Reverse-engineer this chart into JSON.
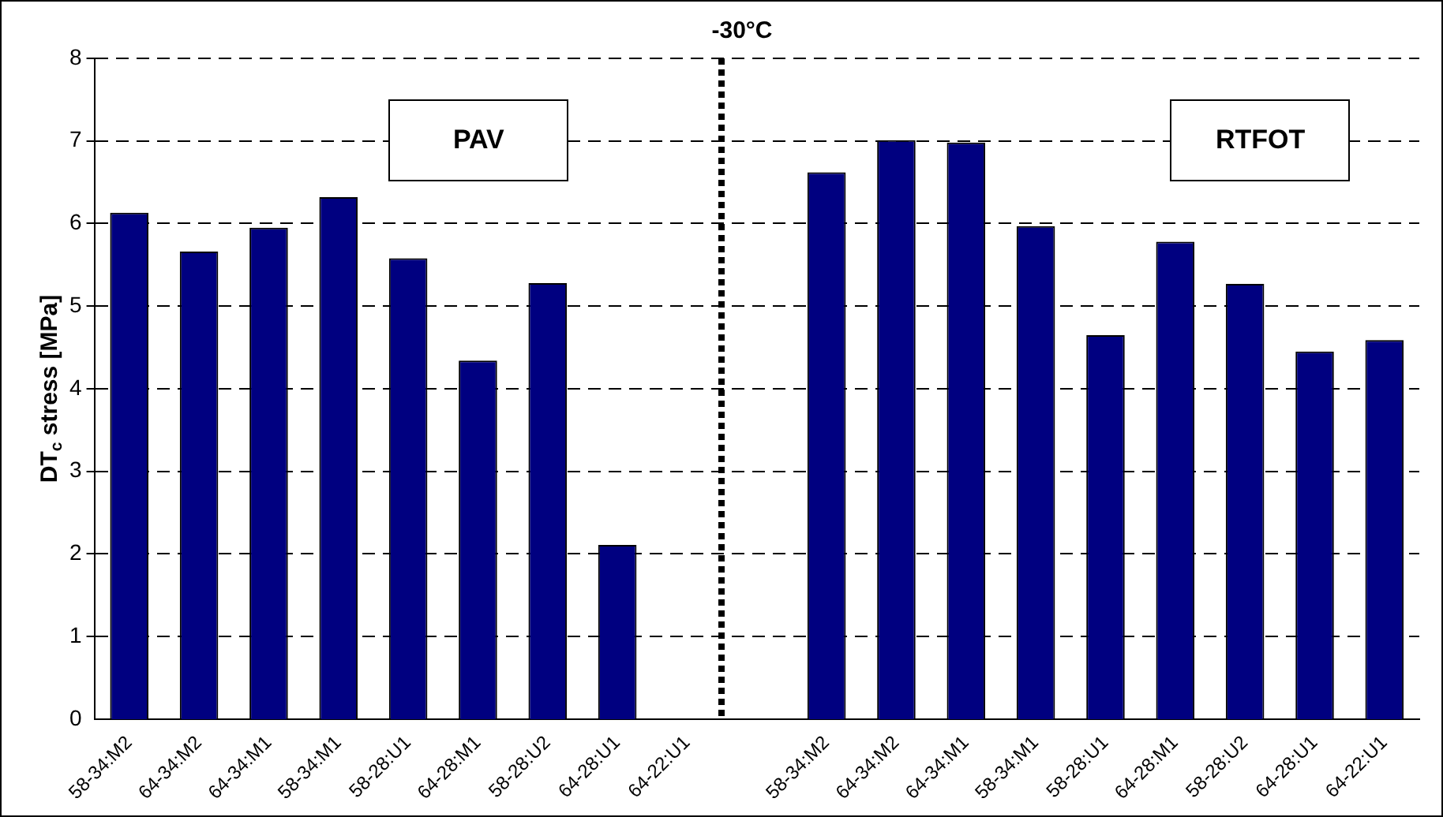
{
  "chart_data": {
    "type": "bar",
    "title": "-30°C",
    "ylabel": "DT$_{c}$ stress [MPa]",
    "categories": [
      "58-34:M2",
      "64-34:M2",
      "64-34:M1",
      "58-34:M1",
      "58-28:U1",
      "64-28:M1",
      "58-28:U2",
      "64-28:U1",
      "64-22:U1",
      null,
      "58-34:M2",
      "64-34:M2",
      "64-34:M1",
      "58-34:M1",
      "58-28:U1",
      "64-28:M1",
      "58-28:U2",
      "64-28:U1",
      "64-22:U1"
    ],
    "values": [
      6.13,
      5.66,
      5.95,
      6.32,
      5.58,
      4.34,
      5.28,
      2.11,
      null,
      null,
      6.62,
      7.01,
      6.98,
      5.97,
      4.65,
      5.78,
      5.27,
      4.45,
      4.59
    ],
    "color": "#000080",
    "ylim": [
      0,
      8
    ],
    "yticks": [
      0,
      1,
      2,
      3,
      4,
      5,
      6,
      7,
      8
    ],
    "grid": "y",
    "legend": false,
    "annotations": [
      "PAV",
      "RTFOT"
    ]
  }
}
